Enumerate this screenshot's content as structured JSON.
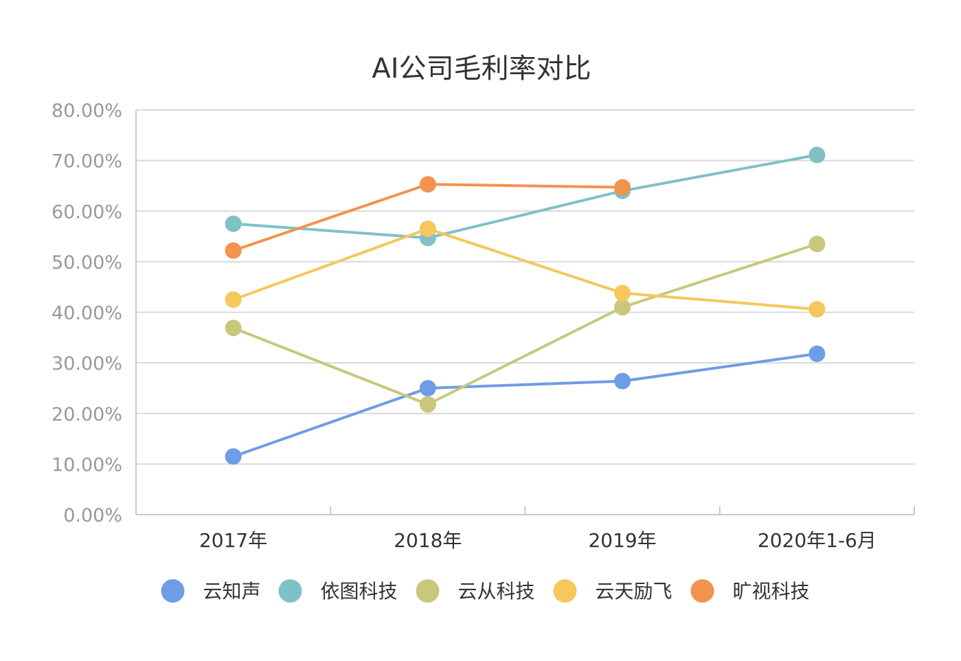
{
  "chart_data": {
    "type": "line",
    "title": "AI公司毛利率对比",
    "categories": [
      "2017年",
      "2018年",
      "2019年",
      "2020年1-6月"
    ],
    "ylim": [
      0,
      80
    ],
    "y_ticks": [
      {
        "value": 0,
        "label": "0.00%"
      },
      {
        "value": 10,
        "label": "10.00%"
      },
      {
        "value": 20,
        "label": "20.00%"
      },
      {
        "value": 30,
        "label": "30.00%"
      },
      {
        "value": 40,
        "label": "40.00%"
      },
      {
        "value": 50,
        "label": "50.00%"
      },
      {
        "value": 60,
        "label": "60.00%"
      },
      {
        "value": 70,
        "label": "70.00%"
      },
      {
        "value": 80,
        "label": "80.00%"
      }
    ],
    "grid": true,
    "legend_position": "bottom",
    "series": [
      {
        "name": "云知声",
        "color": "#6f9ce6",
        "values": [
          11.5,
          25.0,
          26.4,
          31.8
        ]
      },
      {
        "name": "依图科技",
        "color": "#7fc1c7",
        "values": [
          57.5,
          54.7,
          64.0,
          71.1
        ]
      },
      {
        "name": "云从科技",
        "color": "#c8c77c",
        "values": [
          36.9,
          21.8,
          41.0,
          53.5
        ]
      },
      {
        "name": "云天励飞",
        "color": "#f5c75c",
        "values": [
          42.5,
          56.5,
          43.8,
          40.6
        ]
      },
      {
        "name": "旷视科技",
        "color": "#f2934f",
        "values": [
          52.2,
          65.3,
          64.7,
          null
        ]
      }
    ]
  }
}
